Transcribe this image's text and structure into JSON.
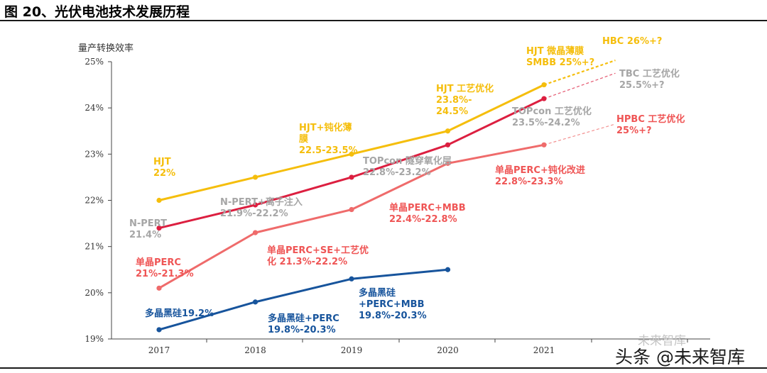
{
  "figure_title": "图 20、光伏电池技术发展历程",
  "watermark": {
    "faint": "未来智库",
    "main": "头条 @未来智库"
  },
  "chart_data": {
    "type": "line",
    "ylabel": "量产转换效率",
    "categories": [
      "2017",
      "2018",
      "2019",
      "2020",
      "2021"
    ],
    "yticks": [
      "19%",
      "20%",
      "21%",
      "22%",
      "23%",
      "24%",
      "25%"
    ],
    "ylim": [
      19,
      25
    ],
    "grid": false,
    "series": [
      {
        "id": "hjt",
        "color": "#f5be0c",
        "values": [
          22.0,
          22.5,
          23.0,
          23.5,
          24.5
        ],
        "projection": {
          "from": 24.5,
          "to": 25.03
        }
      },
      {
        "id": "topcon",
        "color": "#dc1f40",
        "values": [
          21.4,
          21.9,
          22.5,
          23.2,
          24.2
        ],
        "projection": {
          "from": 24.2,
          "to": 24.75
        }
      },
      {
        "id": "perc",
        "color": "#ef6b6b",
        "values": [
          20.1,
          21.3,
          21.8,
          22.8,
          23.2
        ],
        "projection": {
          "from": 23.2,
          "to": 23.65
        }
      },
      {
        "id": "multi",
        "color": "#17549c",
        "values": [
          19.2,
          19.8,
          20.3,
          20.5,
          null
        ]
      }
    ],
    "annotations": [
      {
        "lines": [
          "HJT",
          "22%"
        ],
        "color": "#f5be0c"
      },
      {
        "lines": [
          "HJT+钝化薄",
          "膜",
          "22.5-23.5%"
        ],
        "color": "#f5be0c"
      },
      {
        "lines": [
          "HJT 工艺优化",
          "23.8%-",
          "24.5%"
        ],
        "color": "#f5be0c"
      },
      {
        "lines": [
          "HJT 微晶薄膜",
          "SMBB 25%+?"
        ],
        "color": "#f5be0c"
      },
      {
        "lines": [
          "HBC 26%+?"
        ],
        "color": "#f5be0c"
      },
      {
        "lines": [
          "N-PERT",
          "21.4%"
        ],
        "color": "#a6a6a6"
      },
      {
        "lines": [
          "N-PERT+离子注入",
          "21.9%-22.2%"
        ],
        "color": "#a6a6a6"
      },
      {
        "lines": [
          "TOPcon 隧穿氧化层",
          "22.8%-23.2%"
        ],
        "color": "#a6a6a6"
      },
      {
        "lines": [
          "TOPcon 工艺优化",
          "23.5%-24.2%"
        ],
        "color": "#a6a6a6"
      },
      {
        "lines": [
          "TBC 工艺优化",
          "25.5%+?"
        ],
        "color": "#a6a6a6"
      },
      {
        "lines": [
          "单晶PERC",
          "21%-21.3%"
        ],
        "color": "#ef5555"
      },
      {
        "lines": [
          "单晶PERC+SE+工艺优",
          "化 21.3%-22.2%"
        ],
        "color": "#ef5555"
      },
      {
        "lines": [
          "单晶PERC+MBB",
          "22.4%-22.8%"
        ],
        "color": "#ef5555"
      },
      {
        "lines": [
          "单晶PERC+钝化改进",
          "22.8%-23.3%"
        ],
        "color": "#ef5555"
      },
      {
        "lines": [
          "HPBC 工艺优化",
          "25%+?"
        ],
        "color": "#ef5555"
      },
      {
        "lines": [
          "多晶黑硅19.2%"
        ],
        "color": "#17549c"
      },
      {
        "lines": [
          "多晶黑硅+PERC",
          "19.8%-20.3%"
        ],
        "color": "#17549c"
      },
      {
        "lines": [
          "多晶黑硅",
          "+PERC+MBB",
          "19.8%-20.3%"
        ],
        "color": "#17549c"
      }
    ]
  }
}
